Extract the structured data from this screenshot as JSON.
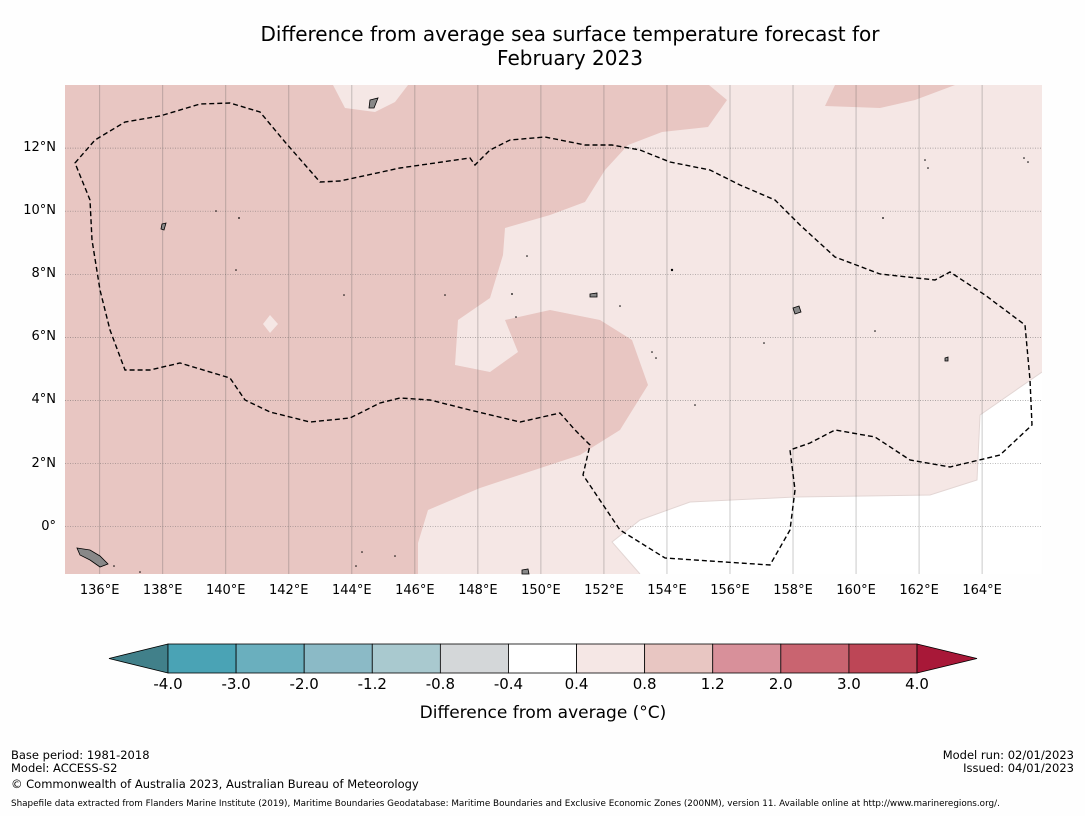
{
  "title": {
    "line1": "Difference from average sea surface temperature forecast for",
    "line2": "February 2023"
  },
  "map": {
    "lat_labels": [
      "12°N",
      "10°N",
      "8°N",
      "6°N",
      "4°N",
      "2°N",
      "0°"
    ],
    "lat_values": [
      12,
      10,
      8,
      6,
      4,
      2,
      0
    ],
    "lon_labels": [
      "136°E",
      "138°E",
      "140°E",
      "142°E",
      "144°E",
      "146°E",
      "148°E",
      "150°E",
      "152°E",
      "154°E",
      "156°E",
      "158°E",
      "160°E",
      "162°E",
      "164°E"
    ],
    "lon_values": [
      136,
      138,
      140,
      142,
      144,
      146,
      148,
      150,
      152,
      154,
      156,
      158,
      160,
      162,
      164
    ],
    "lon_range": [
      134.9,
      165.9
    ],
    "lat_range": [
      -1.5,
      14.0
    ],
    "shading": {
      "0.8_to_1.2": "#e8c6c2",
      "0.4_to_0.8": "#f5e7e5",
      "-0.4_to_0.4": "#ffffff"
    },
    "eez_boundary_style": "dashed",
    "land_color": "#888888"
  },
  "colorbar": {
    "labels": [
      "-4.0",
      "-3.0",
      "-2.0",
      "-1.2",
      "-0.8",
      "-0.4",
      "0.4",
      "0.8",
      "1.2",
      "2.0",
      "3.0",
      "4.0"
    ],
    "colors": [
      "#41808a",
      "#4aa3b5",
      "#6aafbe",
      "#8bbac6",
      "#a9c9cf",
      "#d4d7d9",
      "#ffffff",
      "#f5e7e5",
      "#e8c6c2",
      "#d8909a",
      "#c96470",
      "#bd4656",
      "#a81838"
    ],
    "title": "Difference from average (°C)"
  },
  "footer": {
    "base_period": "Base period: 1981-2018",
    "model": "Model: ACCESS-S2",
    "copyright": "© Commonwealth of Australia 2023, Australian Bureau of Meteorology",
    "model_run": "Model run: 02/01/2023",
    "issued": "Issued: 04/01/2023",
    "shapefile": "Shapefile data extracted from Flanders Marine Institute (2019), Maritime Boundaries Geodatabase: Maritime Boundaries and Exclusive Economic Zones (200NM), version 11. Available online at http://www.marineregions.org/."
  }
}
